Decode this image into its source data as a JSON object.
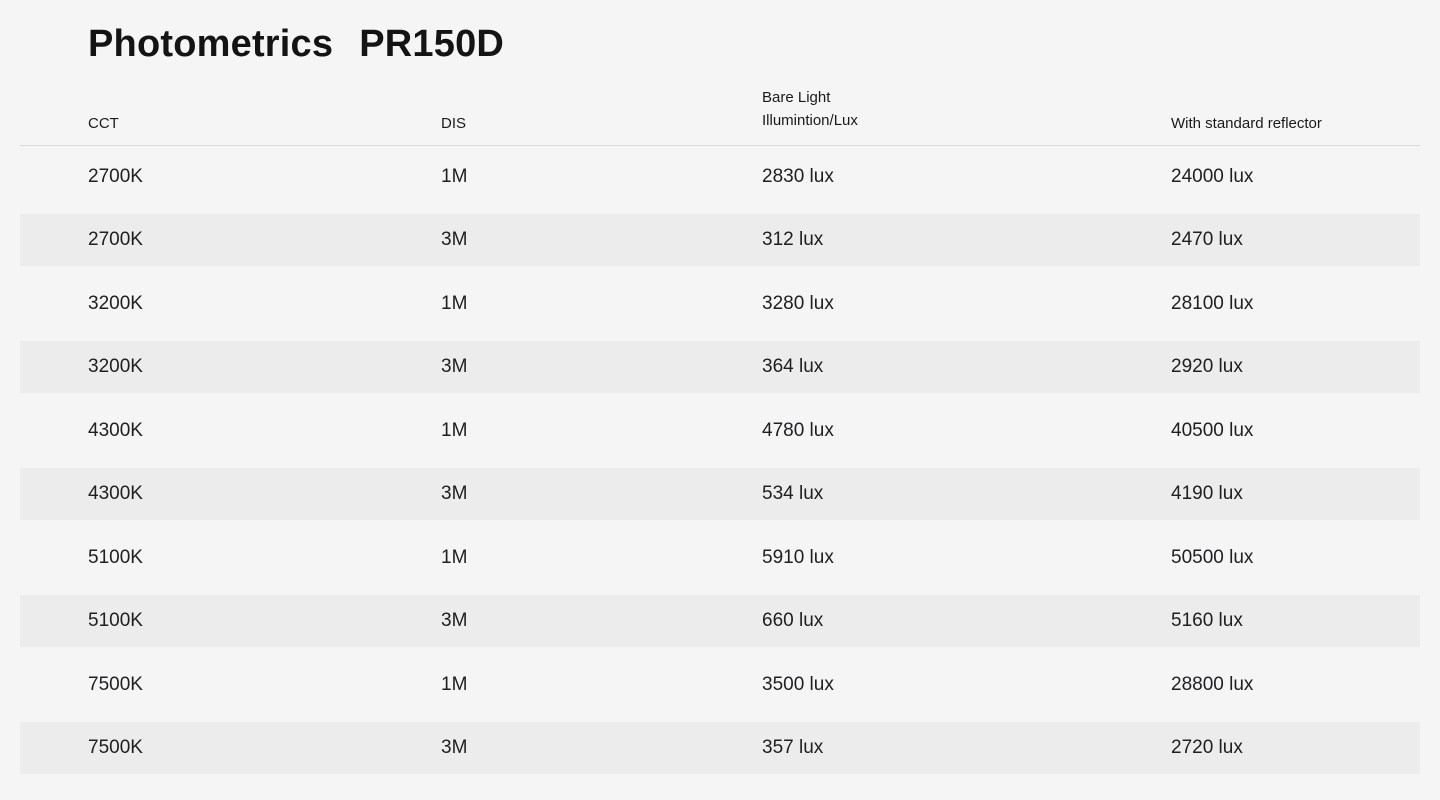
{
  "theme": {
    "background": "#f5f5f6",
    "stripe": "#ececec",
    "divider": "#d8d8d8",
    "text": "#1d1d1f"
  },
  "header": {
    "title_product": "Photometrics",
    "title_model": "PR150D"
  },
  "table": {
    "columns": {
      "cct": "CCT",
      "dis": "DIS",
      "bare_line1": "Bare Light",
      "bare_line2": "Illumintion/Lux",
      "reflector": "With standard reflector"
    },
    "rows": [
      {
        "cct": "2700K",
        "dis": "1M",
        "bare": "2830 lux",
        "reflector": "24000 lux"
      },
      {
        "cct": "2700K",
        "dis": "3M",
        "bare": "312 lux",
        "reflector": "2470 lux"
      },
      {
        "cct": "3200K",
        "dis": "1M",
        "bare": "3280 lux",
        "reflector": "28100 lux"
      },
      {
        "cct": "3200K",
        "dis": "3M",
        "bare": "364 lux",
        "reflector": "2920 lux"
      },
      {
        "cct": "4300K",
        "dis": "1M",
        "bare": "4780 lux",
        "reflector": "40500 lux"
      },
      {
        "cct": "4300K",
        "dis": "3M",
        "bare": "534 lux",
        "reflector": "4190 lux"
      },
      {
        "cct": "5100K",
        "dis": "1M",
        "bare": "5910 lux",
        "reflector": "50500 lux"
      },
      {
        "cct": "5100K",
        "dis": "3M",
        "bare": "660 lux",
        "reflector": "5160 lux"
      },
      {
        "cct": "7500K",
        "dis": "1M",
        "bare": "3500 lux",
        "reflector": "28800 lux"
      },
      {
        "cct": "7500K",
        "dis": "3M",
        "bare": "357 lux",
        "reflector": "2720 lux"
      }
    ]
  }
}
